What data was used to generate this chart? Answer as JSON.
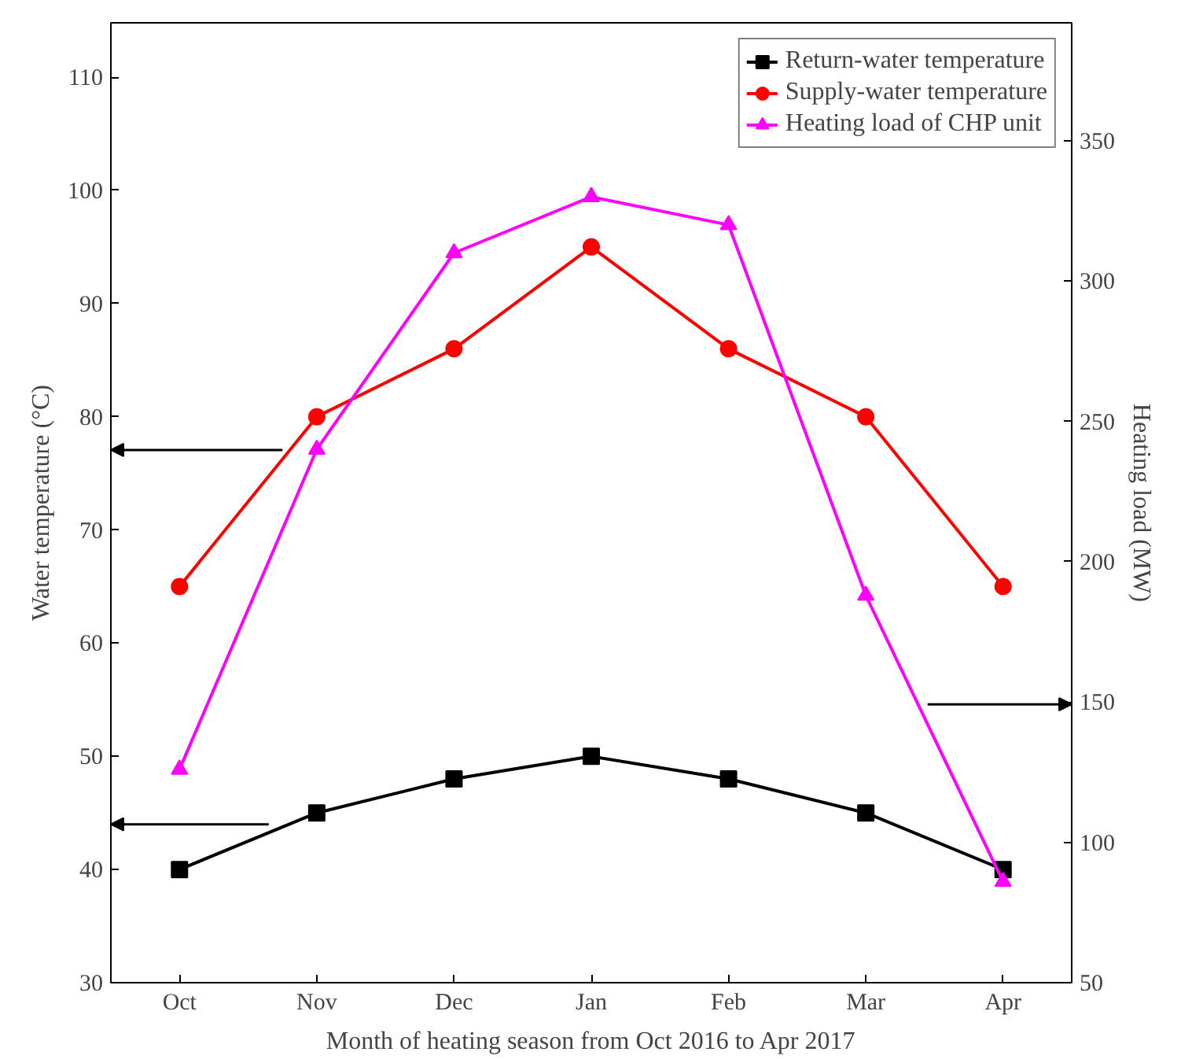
{
  "chart_data": {
    "type": "line",
    "xlabel": "Month of heating season from Oct 2016 to Apr 2017",
    "ylabel": "Water temperature (°C)",
    "y2label": "Heating load (MW)",
    "categories": [
      "Oct",
      "Nov",
      "Dec",
      "Jan",
      "Feb",
      "Mar",
      "Apr"
    ],
    "series": [
      {
        "name": "Return-water temperature",
        "color": "#000000",
        "marker": "square",
        "values": [
          40,
          45,
          48,
          50,
          48,
          45,
          40
        ]
      },
      {
        "name": "Supply-water temperature",
        "color": "#ff0000",
        "marker": "circle",
        "values": [
          65,
          80,
          86,
          95,
          86,
          80,
          65
        ]
      },
      {
        "name": "Heating load of CHP unit",
        "color": "#ff00ff",
        "marker": "triangle",
        "axis": "y2",
        "values": [
          126,
          240,
          310,
          330,
          320,
          188,
          86
        ]
      }
    ],
    "ylim": [
      30,
      114.8
    ],
    "yticks": [
      30,
      40,
      50,
      60,
      70,
      80,
      90,
      100,
      110
    ],
    "y2lim": [
      50,
      392
    ],
    "y2ticks": [
      50,
      100,
      150,
      200,
      250,
      300,
      350
    ],
    "grid": false,
    "legend": "top right",
    "line_style": "solid"
  }
}
